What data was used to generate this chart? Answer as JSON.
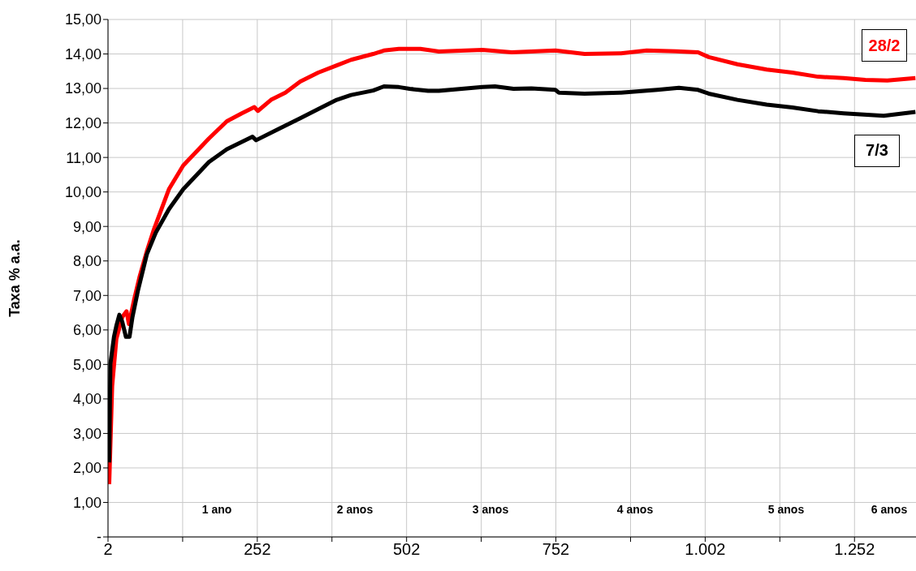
{
  "chart_data": {
    "type": "line",
    "ylabel": "Taxa % a.a.",
    "xlim": [
      2,
      1355
    ],
    "xticks": [
      2,
      {
        "value": 127,
        "label": null
      },
      252,
      {
        "value": 377,
        "label": null
      },
      502,
      {
        "value": 627,
        "label": null
      },
      752,
      {
        "value": 877,
        "label": null
      },
      {
        "value": 1002,
        "label": "1.002"
      },
      {
        "value": 1127,
        "label": null
      },
      {
        "value": 1252,
        "label": "1.252"
      }
    ],
    "ylim": [
      0,
      15
    ],
    "yticks": [
      {
        "value": 0,
        "label": "-"
      },
      {
        "value": 1,
        "label": "1,00"
      },
      {
        "value": 2,
        "label": "2,00"
      },
      {
        "value": 3,
        "label": "3,00"
      },
      {
        "value": 4,
        "label": "4,00"
      },
      {
        "value": 5,
        "label": "5,00"
      },
      {
        "value": 6,
        "label": "6,00"
      },
      {
        "value": 7,
        "label": "7,00"
      },
      {
        "value": 8,
        "label": "8,00"
      },
      {
        "value": 9,
        "label": "9,00"
      },
      {
        "value": 10,
        "label": "10,00"
      },
      {
        "value": 11,
        "label": "11,00"
      },
      {
        "value": 12,
        "label": "12,00"
      },
      {
        "value": 13,
        "label": "13,00"
      },
      {
        "value": 14,
        "label": "14,00"
      },
      {
        "value": 15,
        "label": "15,00"
      }
    ],
    "grid": true,
    "legend": false,
    "marker": "none",
    "line_style": "solid",
    "series": [
      {
        "name": "28/2",
        "color": "#ff0000",
        "x": [
          4,
          9,
          16,
          26,
          33,
          37,
          46,
          55,
          67,
          79,
          104,
          128,
          171,
          201,
          226,
          247,
          253,
          275,
          299,
          324,
          354,
          385,
          409,
          446,
          464,
          489,
          525,
          556,
          629,
          678,
          751,
          800,
          861,
          904,
          953,
          990,
          1008,
          1056,
          1105,
          1148,
          1191,
          1234,
          1270,
          1307,
          1354
        ],
        "values": [
          1.53,
          4.38,
          5.74,
          6.38,
          6.54,
          6.17,
          6.9,
          7.55,
          8.28,
          8.92,
          10.08,
          10.77,
          11.55,
          12.05,
          12.28,
          12.46,
          12.35,
          12.67,
          12.88,
          13.2,
          13.46,
          13.67,
          13.83,
          14.0,
          14.1,
          14.15,
          14.15,
          14.07,
          14.12,
          14.05,
          14.1,
          14.0,
          14.02,
          14.1,
          14.08,
          14.05,
          13.91,
          13.7,
          13.55,
          13.46,
          13.34,
          13.3,
          13.25,
          13.23,
          13.3
        ]
      },
      {
        "name": "7/3",
        "color": "#000000",
        "x": [
          4,
          6,
          12,
          16,
          21,
          26,
          32,
          38,
          43,
          52,
          67,
          82,
          104,
          128,
          171,
          201,
          244,
          250,
          287,
          324,
          354,
          385,
          409,
          446,
          464,
          489,
          507,
          538,
          556,
          629,
          650,
          681,
          711,
          751,
          757,
          800,
          861,
          922,
          958,
          990,
          1008,
          1056,
          1105,
          1148,
          1191,
          1234,
          1301,
          1354
        ],
        "values": [
          2.16,
          5.01,
          5.8,
          6.12,
          6.44,
          6.23,
          5.8,
          5.8,
          6.38,
          7.13,
          8.19,
          8.82,
          9.5,
          10.08,
          10.87,
          11.24,
          11.6,
          11.5,
          11.82,
          12.14,
          12.4,
          12.67,
          12.81,
          12.94,
          13.06,
          13.04,
          12.99,
          12.93,
          12.93,
          13.04,
          13.06,
          12.99,
          13.0,
          12.96,
          12.88,
          12.85,
          12.88,
          12.96,
          13.02,
          12.96,
          12.85,
          12.67,
          12.53,
          12.45,
          12.34,
          12.28,
          12.21,
          12.32
        ]
      }
    ],
    "annotations": [
      "1 ano",
      "2 anos",
      "3 anos",
      "4 anos",
      "5 anos",
      "6 anos"
    ]
  }
}
